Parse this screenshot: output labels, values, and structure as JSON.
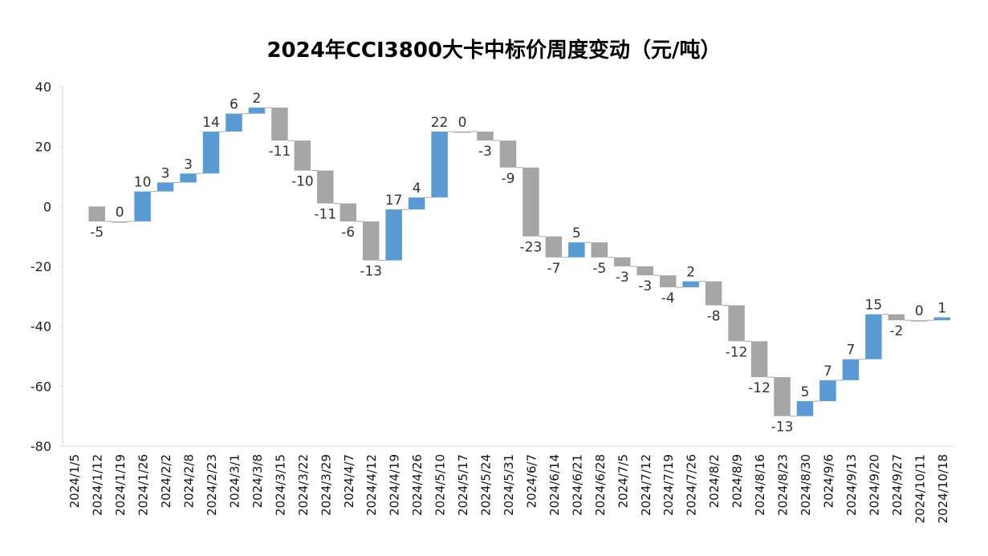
{
  "chart_data": {
    "type": "waterfall",
    "title": "2024年CCI3800大卡中标价周度变动（元/吨）",
    "xlabel": "",
    "ylabel": "",
    "ylim": [
      -80,
      40
    ],
    "yticks": [
      40,
      20,
      0,
      -20,
      -40,
      -60,
      -80
    ],
    "grid": false,
    "legend": "none",
    "colors": {
      "increase": "#5b9bd5",
      "decrease": "#a5a5a5",
      "connector": "#a5a5a5",
      "axis": "#d9d9d9"
    },
    "categories": [
      "2024/1/5",
      "2024/1/12",
      "2024/1/19",
      "2024/1/26",
      "2024/2/2",
      "2024/2/8",
      "2024/2/23",
      "2024/3/1",
      "2024/3/8",
      "2024/3/15",
      "2024/3/22",
      "2024/3/29",
      "2024/4/7",
      "2024/4/12",
      "2024/4/19",
      "2024/4/26",
      "2024/5/10",
      "2024/5/17",
      "2024/5/24",
      "2024/5/31",
      "2024/6/7",
      "2024/6/14",
      "2024/6/21",
      "2024/6/28",
      "2024/7/5",
      "2024/7/12",
      "2024/7/19",
      "2024/7/26",
      "2024/8/2",
      "2024/8/9",
      "2024/8/16",
      "2024/8/23",
      "2024/8/30",
      "2024/9/6",
      "2024/9/13",
      "2024/9/20",
      "2024/9/27",
      "2024/10/11",
      "2024/10/18"
    ],
    "values": [
      null,
      -5,
      0,
      10,
      3,
      3,
      14,
      6,
      2,
      -11,
      -10,
      -11,
      -6,
      -13,
      17,
      4,
      22,
      0,
      -3,
      -9,
      -23,
      -7,
      5,
      -5,
      -3,
      -3,
      -4,
      2,
      -8,
      -12,
      -12,
      -13,
      5,
      7,
      7,
      15,
      -2,
      0,
      1
    ]
  }
}
